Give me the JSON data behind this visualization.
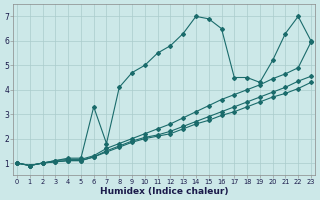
{
  "bg_color": "#cce8e8",
  "grid_color": "#aacccc",
  "line_color": "#1a6b6b",
  "xlabel": "Humidex (Indice chaleur)",
  "xlim": [
    -0.3,
    23.3
  ],
  "ylim": [
    0.5,
    7.5
  ],
  "xticks": [
    0,
    1,
    2,
    3,
    4,
    5,
    6,
    7,
    8,
    9,
    10,
    11,
    12,
    13,
    14,
    15,
    16,
    17,
    18,
    19,
    20,
    21,
    22,
    23
  ],
  "yticks": [
    1,
    2,
    3,
    4,
    5,
    6,
    7
  ],
  "series": [
    [
      1.0,
      0.9,
      1.0,
      1.05,
      1.1,
      1.1,
      1.25,
      1.45,
      1.65,
      1.85,
      2.0,
      2.1,
      2.2,
      2.4,
      2.6,
      2.75,
      2.95,
      3.1,
      3.3,
      3.5,
      3.7,
      3.85,
      4.05,
      4.3
    ],
    [
      1.0,
      0.9,
      1.0,
      1.05,
      1.1,
      1.1,
      1.25,
      1.5,
      1.7,
      1.9,
      2.05,
      2.15,
      2.3,
      2.5,
      2.7,
      2.9,
      3.1,
      3.3,
      3.5,
      3.7,
      3.9,
      4.1,
      4.35,
      4.55
    ],
    [
      1.0,
      0.9,
      1.0,
      1.1,
      1.15,
      1.15,
      1.3,
      1.6,
      1.8,
      2.0,
      2.2,
      2.4,
      2.6,
      2.85,
      3.1,
      3.35,
      3.6,
      3.8,
      4.0,
      4.2,
      4.45,
      4.65,
      4.9,
      5.95
    ],
    [
      1.0,
      0.9,
      1.0,
      1.1,
      1.2,
      1.2,
      3.3,
      1.8,
      4.1,
      4.7,
      5.0,
      5.5,
      5.8,
      6.3,
      7.0,
      6.9,
      6.5,
      4.5,
      4.5,
      4.3,
      5.2,
      6.3,
      7.0,
      6.0
    ]
  ]
}
